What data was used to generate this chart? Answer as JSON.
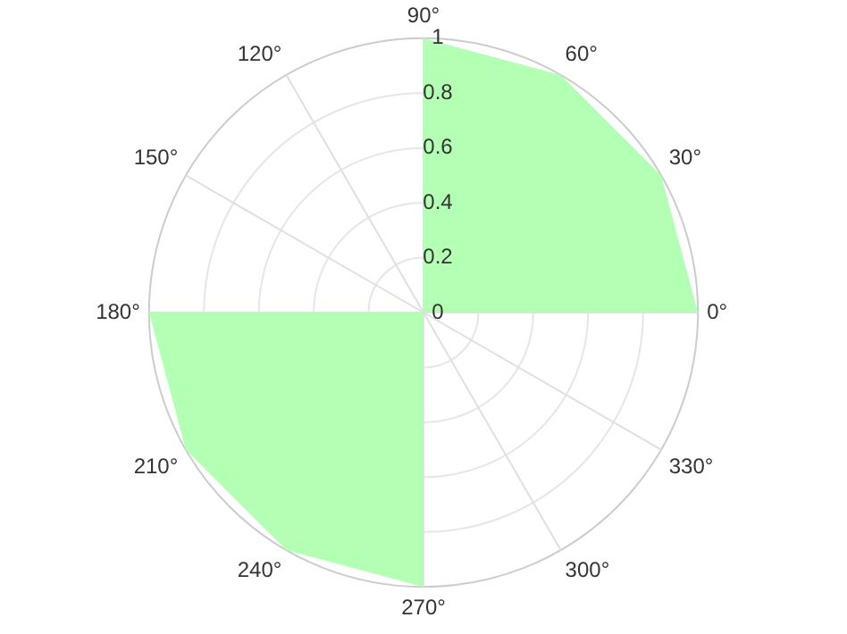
{
  "chart_data": {
    "type": "radar",
    "categories": [
      "90°",
      "60°",
      "30°",
      "0°",
      "330°",
      "300°",
      "270°",
      "240°",
      "210°",
      "180°",
      "150°",
      "120°"
    ],
    "series": [
      {
        "color": "#b3ffb3",
        "values": [
          1,
          1,
          1,
          1,
          0,
          0,
          1,
          1,
          1,
          1,
          0,
          0
        ]
      }
    ],
    "ylim": [
      0,
      1
    ],
    "yticks": [
      0,
      0.2,
      0.4,
      0.6,
      0.8,
      1
    ],
    "grid": true,
    "marker": "none"
  }
}
